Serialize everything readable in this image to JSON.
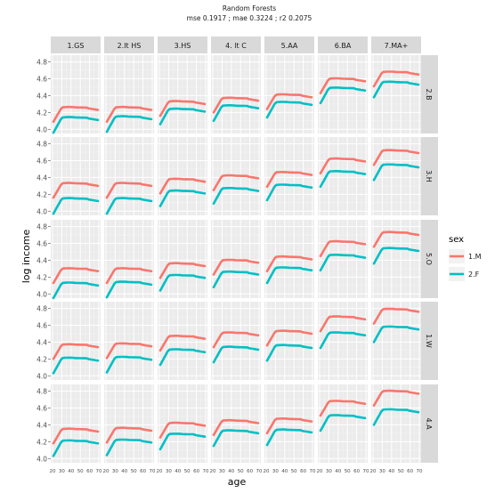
{
  "chart_data": {
    "type": "line",
    "title": "Random Forests",
    "subtitle": "mse 0.1917 ; mae 0.3224 ; r2 0.2075",
    "xlabel": "age",
    "ylabel": "log income",
    "ylim": [
      3.95,
      4.88
    ],
    "yticks": [
      "4.0",
      "4.2",
      "4.4",
      "4.6",
      "4.8"
    ],
    "xlim": [
      20,
      70
    ],
    "xticks": [
      "20",
      "30",
      "40",
      "50",
      "60",
      "70"
    ],
    "grid": true,
    "legend": {
      "title": "sex",
      "placement": "right"
    },
    "series": [
      {
        "name": "1.M",
        "color": "#f8766d"
      },
      {
        "name": "2.F",
        "color": "#00bfc4"
      }
    ],
    "columns": [
      "1.GS",
      "2.lt HS",
      "3.HS",
      "4. lt C",
      "5.AA",
      "6.BA",
      "7.MA+"
    ],
    "rows": [
      "2.B",
      "3.H",
      "5.O",
      "1.W",
      "4.A"
    ],
    "plateau_levels": {
      "1.M": [
        [
          4.26,
          4.26,
          4.33,
          4.37,
          4.41,
          4.6,
          4.68
        ],
        [
          4.33,
          4.33,
          4.38,
          4.42,
          4.46,
          4.62,
          4.72
        ],
        [
          4.3,
          4.3,
          4.36,
          4.4,
          4.44,
          4.62,
          4.73
        ],
        [
          4.37,
          4.38,
          4.47,
          4.51,
          4.53,
          4.7,
          4.79
        ],
        [
          4.35,
          4.36,
          4.42,
          4.45,
          4.47,
          4.68,
          4.8
        ]
      ],
      "2.F": [
        [
          4.14,
          4.15,
          4.24,
          4.28,
          4.32,
          4.49,
          4.56
        ],
        [
          4.15,
          4.15,
          4.24,
          4.27,
          4.31,
          4.47,
          4.55
        ],
        [
          4.13,
          4.14,
          4.22,
          4.26,
          4.31,
          4.46,
          4.54
        ],
        [
          4.21,
          4.22,
          4.31,
          4.34,
          4.36,
          4.51,
          4.58
        ],
        [
          4.21,
          4.22,
          4.29,
          4.33,
          4.34,
          4.51,
          4.58
        ]
      ]
    }
  }
}
